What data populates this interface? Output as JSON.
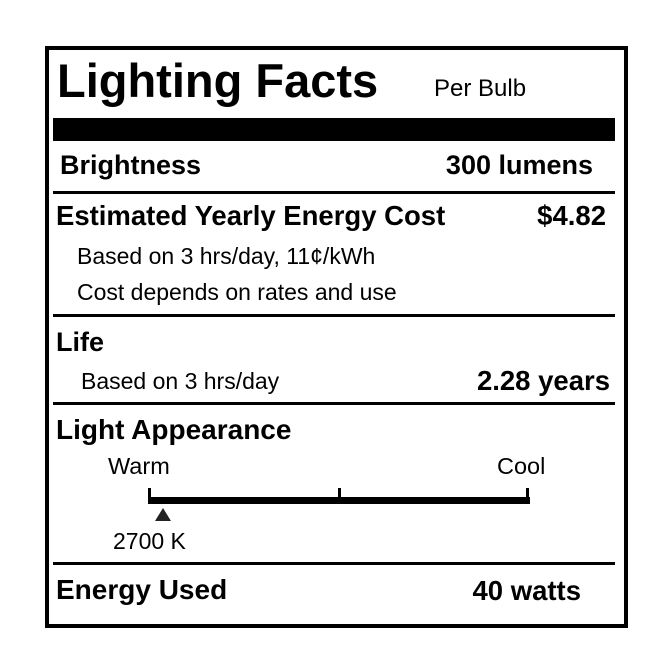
{
  "header": {
    "title": "Lighting Facts",
    "subtitle": "Per Bulb"
  },
  "brightness": {
    "label": "Brightness",
    "value": "300 lumens"
  },
  "energy_cost": {
    "label": "Estimated Yearly Energy Cost",
    "value": "$4.82",
    "note_1": "Based on 3 hrs/day, 11¢/kWh",
    "note_2": "Cost depends on rates and use"
  },
  "life": {
    "label": "Life",
    "note": "Based on 3 hrs/day",
    "value": "2.28 years"
  },
  "light_appearance": {
    "label": "Light Appearance",
    "scale_left": "Warm",
    "scale_right": "Cool",
    "marker_label": "2700 K",
    "marker_fraction": 0.04
  },
  "energy_used": {
    "label": "Energy Used",
    "value": "40 watts"
  }
}
